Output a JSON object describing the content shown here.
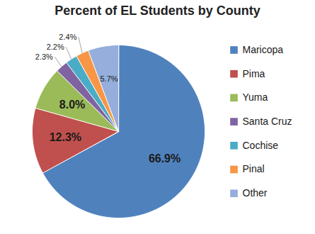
{
  "chart_data": {
    "type": "pie",
    "title": "Percent of EL Students by County",
    "categories": [
      "Maricopa",
      "Pima",
      "Yuma",
      "Santa Cruz",
      "Cochise",
      "Pinal",
      "Other"
    ],
    "values": [
      66.9,
      12.3,
      8.0,
      2.3,
      2.2,
      2.4,
      5.7
    ],
    "value_labels": [
      "66.9%",
      "12.3%",
      "8.0%",
      "2.3%",
      "2.2%",
      "2.4%",
      "5.7%"
    ],
    "colors": [
      "#4f81bd",
      "#c0504d",
      "#9bbb59",
      "#8064a2",
      "#4bacc6",
      "#f79646",
      "#95aedb"
    ],
    "data_labels": true,
    "legend": "right"
  }
}
